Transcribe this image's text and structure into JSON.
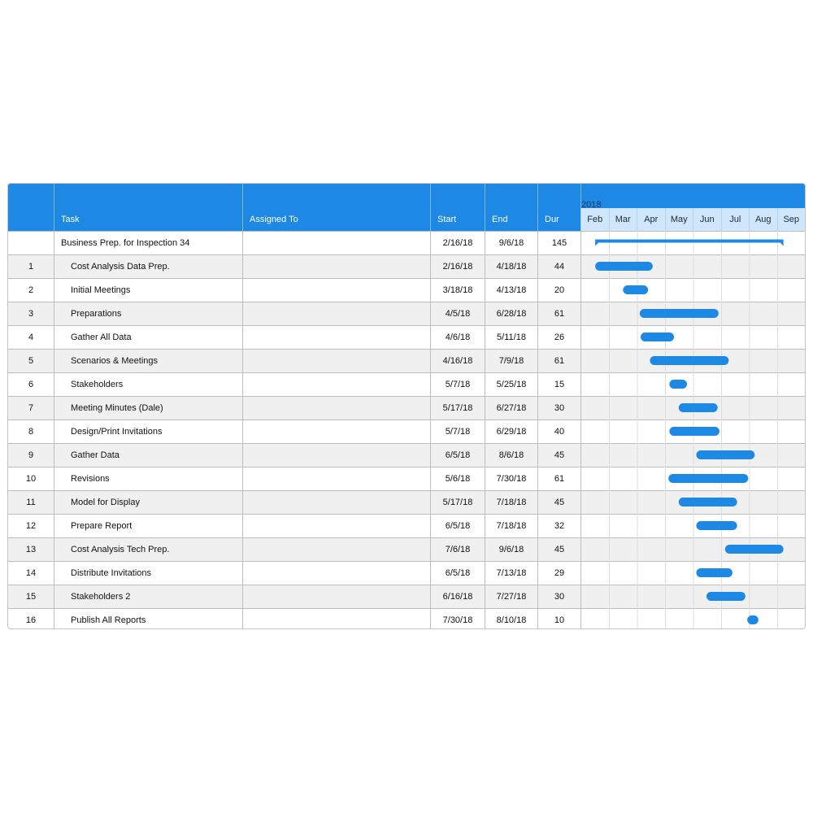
{
  "columns": {
    "num": "",
    "task": "Task",
    "assigned": "Assigned To",
    "start": "Start",
    "end": "End",
    "dur": "Dur"
  },
  "colors": {
    "accent": "#1e88e5",
    "month_band": "#d0e6fb",
    "row_alt": "#f0f0f0",
    "bar": "#1e88e5"
  },
  "chart_data": {
    "type": "gantt",
    "year": "2018",
    "months": [
      "Feb",
      "Mar",
      "Apr",
      "May",
      "Jun",
      "Jul",
      "Aug",
      "Sep"
    ],
    "x_range": [
      "2018-02-01",
      "2018-09-30"
    ],
    "rows": [
      {
        "num": "",
        "task": "Business Prep. for Inspection 34",
        "assigned": "",
        "start": "2/16/18",
        "end": "9/6/18",
        "dur": "145",
        "summary": true
      },
      {
        "num": "1",
        "task": "Cost Analysis Data Prep.",
        "assigned": "",
        "start": "2/16/18",
        "end": "4/18/18",
        "dur": "44"
      },
      {
        "num": "2",
        "task": "Initial Meetings",
        "assigned": "",
        "start": "3/18/18",
        "end": "4/13/18",
        "dur": "20"
      },
      {
        "num": "3",
        "task": "Preparations",
        "assigned": "",
        "start": "4/5/18",
        "end": "6/28/18",
        "dur": "61"
      },
      {
        "num": "4",
        "task": "Gather All Data",
        "assigned": "",
        "start": "4/6/18",
        "end": "5/11/18",
        "dur": "26"
      },
      {
        "num": "5",
        "task": "Scenarios & Meetings",
        "assigned": "",
        "start": "4/16/18",
        "end": "7/9/18",
        "dur": "61"
      },
      {
        "num": "6",
        "task": "Stakeholders",
        "assigned": "",
        "start": "5/7/18",
        "end": "5/25/18",
        "dur": "15"
      },
      {
        "num": "7",
        "task": "Meeting Minutes (Dale)",
        "assigned": "",
        "start": "5/17/18",
        "end": "6/27/18",
        "dur": "30"
      },
      {
        "num": "8",
        "task": "Design/Print Invitations",
        "assigned": "",
        "start": "5/7/18",
        "end": "6/29/18",
        "dur": "40"
      },
      {
        "num": "9",
        "task": "Gather Data",
        "assigned": "",
        "start": "6/5/18",
        "end": "8/6/18",
        "dur": "45"
      },
      {
        "num": "10",
        "task": "Revisions",
        "assigned": "",
        "start": "5/6/18",
        "end": "7/30/18",
        "dur": "61"
      },
      {
        "num": "11",
        "task": "Model for Display",
        "assigned": "",
        "start": "5/17/18",
        "end": "7/18/18",
        "dur": "45"
      },
      {
        "num": "12",
        "task": "Prepare Report",
        "assigned": "",
        "start": "6/5/18",
        "end": "7/18/18",
        "dur": "32"
      },
      {
        "num": "13",
        "task": "Cost Analysis Tech Prep.",
        "assigned": "",
        "start": "7/6/18",
        "end": "9/6/18",
        "dur": "45"
      },
      {
        "num": "14",
        "task": "Distribute Invitations",
        "assigned": "",
        "start": "6/5/18",
        "end": "7/13/18",
        "dur": "29"
      },
      {
        "num": "15",
        "task": "Stakeholders 2",
        "assigned": "",
        "start": "6/16/18",
        "end": "7/27/18",
        "dur": "30"
      },
      {
        "num": "16",
        "task": "Publish All Reports",
        "assigned": "",
        "start": "7/30/18",
        "end": "8/10/18",
        "dur": "10"
      }
    ]
  }
}
